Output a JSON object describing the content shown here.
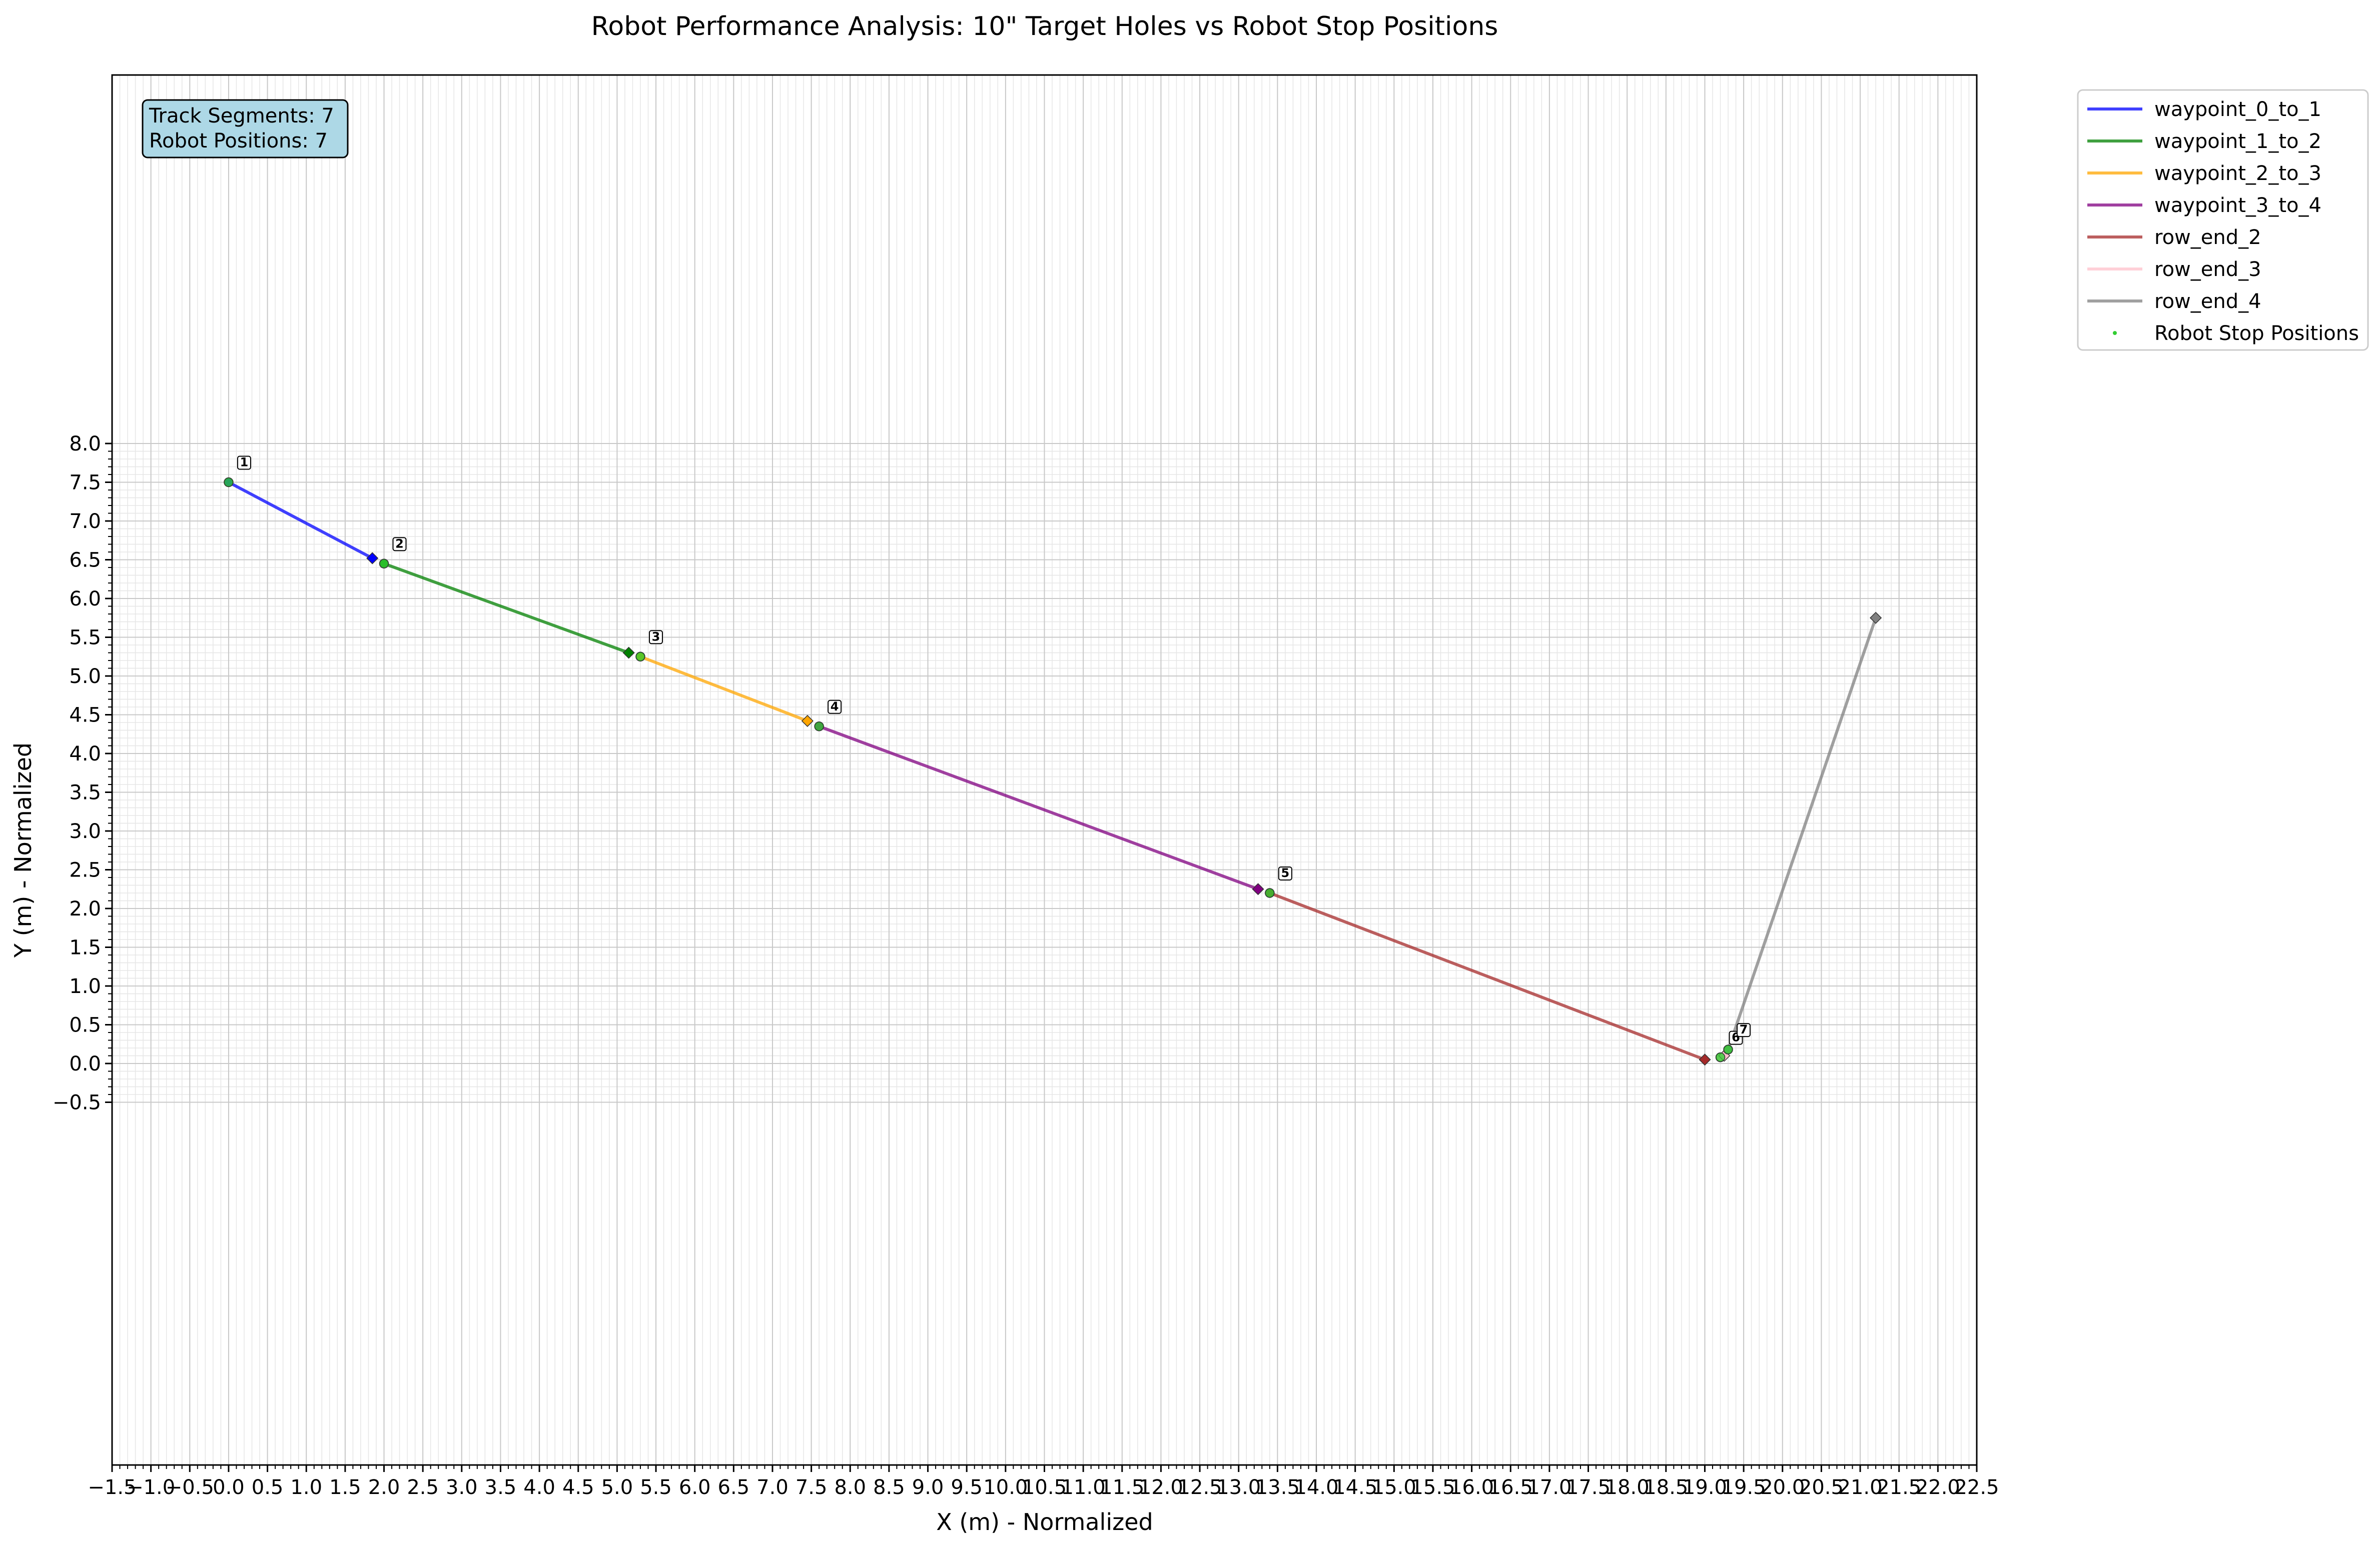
{
  "chart_data": {
    "type": "line",
    "title": "Robot Performance Analysis: 10\" Target Holes vs Robot Stop Positions",
    "xlabel": "X (m) - Normalized",
    "ylabel": "Y (m) - Normalized",
    "xlim": [
      -1.5,
      22.5
    ],
    "ylim": [
      -5.2,
      8.0
    ],
    "x_ticks": [
      -1.5,
      -1.0,
      -0.5,
      0.0,
      0.5,
      1.0,
      1.5,
      2.0,
      2.5,
      3.0,
      3.5,
      4.0,
      4.5,
      5.0,
      5.5,
      6.0,
      6.5,
      7.0,
      7.5,
      8.0,
      8.5,
      9.0,
      9.5,
      10.0,
      10.5,
      11.0,
      11.5,
      12.0,
      12.5,
      13.0,
      13.5,
      14.0,
      14.5,
      15.0,
      15.5,
      16.0,
      16.5,
      17.0,
      17.5,
      18.0,
      18.5,
      19.0,
      19.5,
      20.0,
      20.5,
      21.0,
      21.5,
      22.0,
      22.5
    ],
    "y_ticks": [
      -0.5,
      0.0,
      0.5,
      1.0,
      1.5,
      2.0,
      2.5,
      3.0,
      3.5,
      4.0,
      4.5,
      5.0,
      5.5,
      6.0,
      6.5,
      7.0,
      7.5,
      8.0
    ],
    "grid": true,
    "legend_placement": "outside upper right",
    "series": [
      {
        "name": "waypoint_0_to_1",
        "color": "#0000ff",
        "points": [
          [
            0.0,
            7.5
          ],
          [
            1.85,
            6.52
          ]
        ]
      },
      {
        "name": "waypoint_1_to_2",
        "color": "#008000",
        "points": [
          [
            2.0,
            6.45
          ],
          [
            5.15,
            5.3
          ]
        ]
      },
      {
        "name": "waypoint_2_to_3",
        "color": "#ffa500",
        "points": [
          [
            5.3,
            5.25
          ],
          [
            7.45,
            4.42
          ]
        ]
      },
      {
        "name": "waypoint_3_to_4",
        "color": "#800080",
        "points": [
          [
            7.6,
            4.35
          ],
          [
            13.25,
            2.25
          ]
        ]
      },
      {
        "name": "row_end_2",
        "color": "#a52a2a",
        "points": [
          [
            13.4,
            2.2
          ],
          [
            19.0,
            0.05
          ]
        ]
      },
      {
        "name": "row_end_3",
        "color": "#ffc0cb",
        "points": [
          [
            19.2,
            0.08
          ],
          [
            19.25,
            0.1
          ]
        ]
      },
      {
        "name": "row_end_4",
        "color": "#808080",
        "points": [
          [
            19.3,
            0.18
          ],
          [
            21.2,
            5.75
          ]
        ]
      }
    ],
    "stop_positions": {
      "name": "Robot Stop Positions",
      "color": "#32cd32",
      "points": [
        {
          "label": "1",
          "x": 0.0,
          "y": 7.5
        },
        {
          "label": "2",
          "x": 2.0,
          "y": 6.45
        },
        {
          "label": "3",
          "x": 5.3,
          "y": 5.25
        },
        {
          "label": "4",
          "x": 7.6,
          "y": 4.35
        },
        {
          "label": "5",
          "x": 13.4,
          "y": 2.2
        },
        {
          "label": "6",
          "x": 19.2,
          "y": 0.08
        },
        {
          "label": "7",
          "x": 19.3,
          "y": 0.18
        }
      ]
    },
    "annotation": {
      "line1": "Track Segments: 7",
      "line2": "Robot Positions: 7"
    }
  }
}
